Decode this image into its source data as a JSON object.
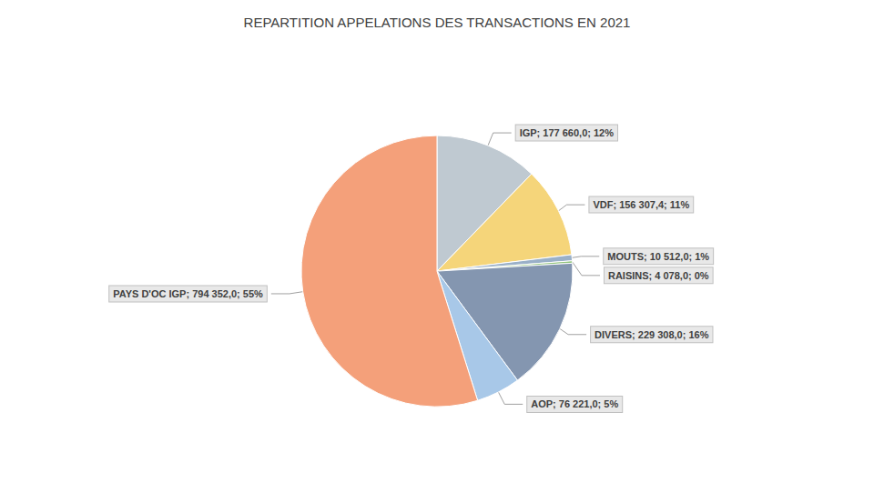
{
  "chart_data": {
    "type": "pie",
    "title": "REPARTITION APPELATIONS DES TRANSACTIONS EN 2021",
    "categories": [
      "IGP",
      "VDF",
      "MOUTS",
      "RAISINS",
      "DIVERS",
      "AOP",
      "PAYS D'OC IGP"
    ],
    "values": [
      177660.0,
      156307.4,
      10512.0,
      4078.0,
      229308.0,
      76221.0,
      794352.0
    ],
    "value_labels": [
      "IGP; 177 660,0; 12%",
      "VDF; 156 307,4; 11%",
      "MOUTS; 10 512,0; 1%",
      "RAISINS; 4 078,0; 0%",
      "DIVERS; 229 308,0; 16%",
      "AOP; 76 221,0; 5%",
      "PAYS D'OC IGP; 794 352,0; 55%"
    ],
    "colors": [
      "#bfc9d1",
      "#f5d57a",
      "#9ab0c8",
      "#92c47d",
      "#8496b0",
      "#a8c8e8",
      "#f4a07a"
    ],
    "data_labels": true
  }
}
